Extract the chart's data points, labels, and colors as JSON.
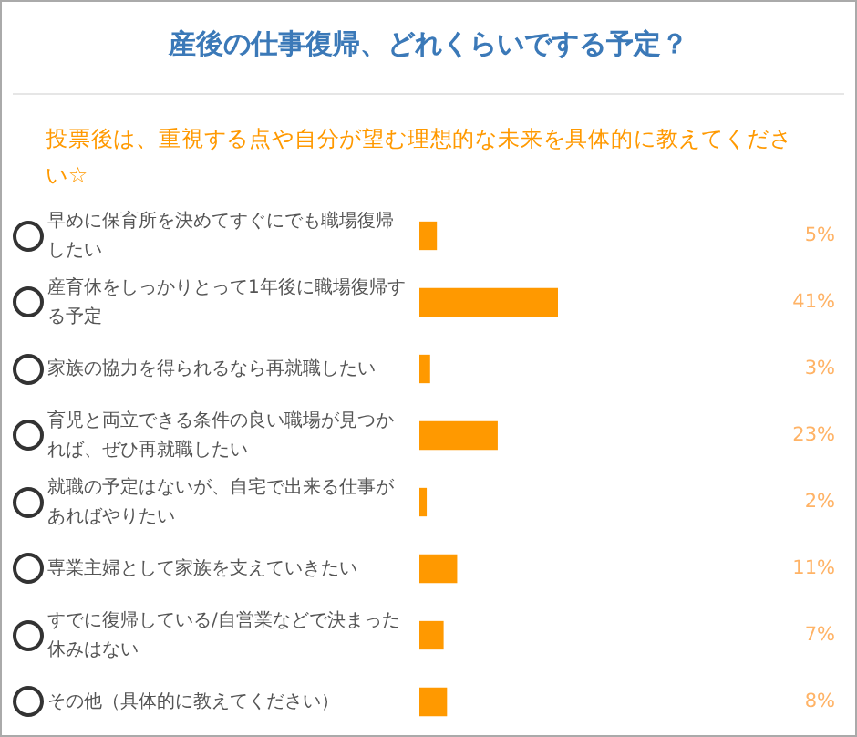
{
  "chart_data": {
    "type": "bar",
    "orientation": "horizontal",
    "title": "産後の仕事復帰、どれくらいでする予定？",
    "subtitle": "投票後は、重視する点や自分が望む理想的な未来を具体的に教えてください☆",
    "categories": [
      "早めに保育所を決めてすぐにでも職場復帰したい",
      "産育休をしっかりとって1年後に職場復帰する予定",
      "家族の協力を得られるなら再就職したい",
      "育児と両立できる条件の良い職場が見つかれば、ぜひ再就職したい",
      "就職の予定はないが、自宅で出来る仕事があればやりたい",
      "専業主婦として家族を支えていきたい",
      "すでに復帰している/自営業などで決まった休みはない",
      "その他（具体的に教えてください）"
    ],
    "values": [
      5,
      41,
      3,
      23,
      2,
      11,
      7,
      8
    ],
    "value_labels": [
      "5%",
      "41%",
      "3%",
      "23%",
      "2%",
      "11%",
      "7%",
      "8%"
    ],
    "color": "#ff9900",
    "tick_labels": "y"
  }
}
